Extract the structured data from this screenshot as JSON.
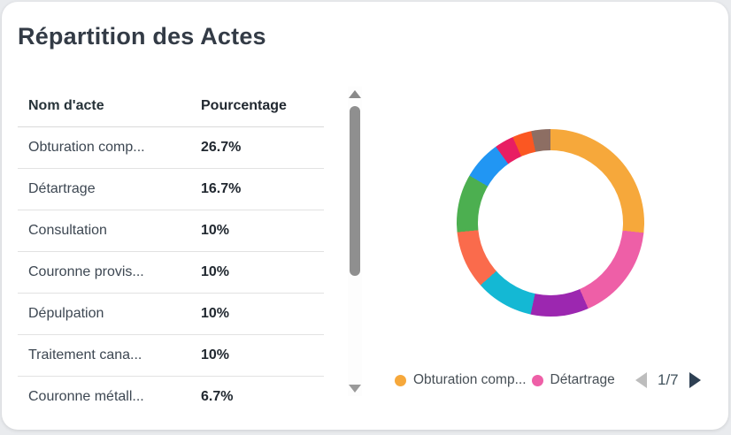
{
  "card": {
    "title": "Répartition des Actes"
  },
  "table": {
    "columns": {
      "name": "Nom d'acte",
      "pct": "Pourcentage"
    },
    "rows": [
      {
        "name": "Obturation comp...",
        "pct": "26.7%"
      },
      {
        "name": "Détartrage",
        "pct": "16.7%"
      },
      {
        "name": "Consultation",
        "pct": "10%"
      },
      {
        "name": "Couronne provis...",
        "pct": "10%"
      },
      {
        "name": "Dépulpation",
        "pct": "10%"
      },
      {
        "name": "Traitement cana...",
        "pct": "10%"
      },
      {
        "name": "Couronne métall...",
        "pct": "6.7%"
      }
    ]
  },
  "chart_data": {
    "type": "pie",
    "donut": true,
    "start_angle_deg": 0,
    "legend_position": "bottom",
    "segments": [
      {
        "label": "Obturation comp...",
        "value": 26.7,
        "color": "#F6A83B"
      },
      {
        "label": "Détartrage",
        "value": 16.7,
        "color": "#EE5FA7"
      },
      {
        "label": "Consultation",
        "value": 10,
        "color": "#9C27B0"
      },
      {
        "label": "Couronne provis...",
        "value": 10,
        "color": "#14B8D4"
      },
      {
        "label": "Dépulpation",
        "value": 10,
        "color": "#FA6B4C"
      },
      {
        "label": "Traitement cana...",
        "value": 10,
        "color": "#4CAF50"
      },
      {
        "label": "Couronne métall...",
        "value": 6.7,
        "color": "#2196F3"
      },
      {
        "label": "",
        "value": 3.3,
        "color": "#E81E63"
      },
      {
        "label": "",
        "value": 3.3,
        "color": "#FB5722"
      },
      {
        "label": "",
        "value": 3.3,
        "color": "#8D6E63"
      }
    ]
  },
  "legend": {
    "items": [
      {
        "label": "Obturation comp...",
        "color": "#F6A83B"
      },
      {
        "label": "Détartrage",
        "color": "#EE5FA7"
      }
    ],
    "overflow_item_color": "#9C27B0",
    "pagination": {
      "page": "1/7",
      "prev_color": "#BDBDBD",
      "next_color": "#2E4053"
    }
  },
  "scrollbar": {
    "orientation": "vertical"
  }
}
